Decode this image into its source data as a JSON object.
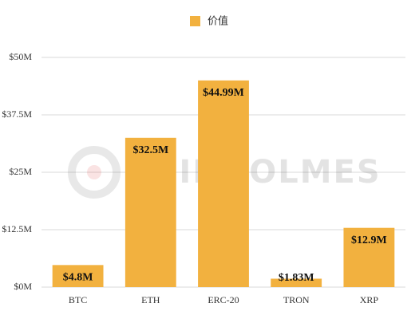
{
  "chart_data": {
    "type": "bar",
    "legend_label": "价值",
    "watermark": "COINHOLMES",
    "categories": [
      "BTC",
      "ETH",
      "ERC-20",
      "TRON",
      "XRP"
    ],
    "series": [
      {
        "name": "价值",
        "color": "#f2b13f",
        "values": [
          4.8,
          32.5,
          44.99,
          1.83,
          12.9
        ],
        "value_labels": [
          "$4.8M",
          "$32.5M",
          "$44.99M",
          "$1.83M",
          "$12.9M"
        ]
      }
    ],
    "ylim": [
      0,
      50
    ],
    "yticks": [
      {
        "value": 0,
        "label": "$0M"
      },
      {
        "value": 12.5,
        "label": "$12.5M"
      },
      {
        "value": 25,
        "label": "$25M"
      },
      {
        "value": 37.5,
        "label": "$37.5M"
      },
      {
        "value": 50,
        "label": "$50M"
      }
    ],
    "grid": true,
    "legend_position": "top"
  }
}
